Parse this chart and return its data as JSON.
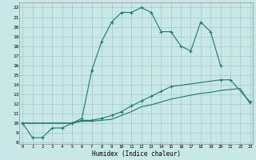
{
  "title": "",
  "xlabel": "Humidex (Indice chaleur)",
  "bg_color": "#c8e8e8",
  "grid_color": "#a0c8c8",
  "line_color": "#1a7a6e",
  "line1_x": [
    0,
    1,
    2,
    3,
    4,
    5,
    6,
    7,
    8,
    9,
    10,
    11,
    12,
    13,
    14,
    15,
    16,
    17,
    18,
    19,
    20
  ],
  "line1_y": [
    10,
    8.5,
    8.5,
    9.5,
    9.5,
    10.0,
    10.5,
    15.5,
    18.5,
    20.5,
    21.5,
    21.5,
    22.0,
    21.5,
    19.5,
    19.5,
    18.0,
    17.5,
    20.5,
    19.5,
    16.0
  ],
  "line2_x": [
    0,
    5,
    6,
    7,
    8,
    9,
    10,
    11,
    12,
    13,
    14,
    15,
    20,
    21,
    23
  ],
  "line2_y": [
    10,
    10,
    10.3,
    10.3,
    10.5,
    10.8,
    11.2,
    11.8,
    12.3,
    12.8,
    13.3,
    13.8,
    14.5,
    14.5,
    12.2
  ],
  "line3_x": [
    0,
    5,
    6,
    7,
    8,
    9,
    10,
    11,
    12,
    13,
    14,
    15,
    16,
    17,
    18,
    19,
    20,
    21,
    22,
    23
  ],
  "line3_y": [
    10,
    10,
    10.2,
    10.2,
    10.3,
    10.4,
    10.8,
    11.2,
    11.7,
    11.9,
    12.2,
    12.5,
    12.7,
    12.9,
    13.1,
    13.2,
    13.4,
    13.5,
    13.6,
    12.0
  ],
  "xticks": [
    0,
    1,
    2,
    3,
    4,
    5,
    6,
    7,
    8,
    9,
    10,
    11,
    12,
    13,
    14,
    15,
    16,
    17,
    18,
    19,
    20,
    21,
    22,
    23
  ],
  "yticks": [
    8,
    9,
    10,
    11,
    12,
    13,
    14,
    15,
    16,
    17,
    18,
    19,
    20,
    21,
    22
  ],
  "xlim": [
    -0.3,
    23.3
  ],
  "ylim": [
    7.8,
    22.5
  ]
}
